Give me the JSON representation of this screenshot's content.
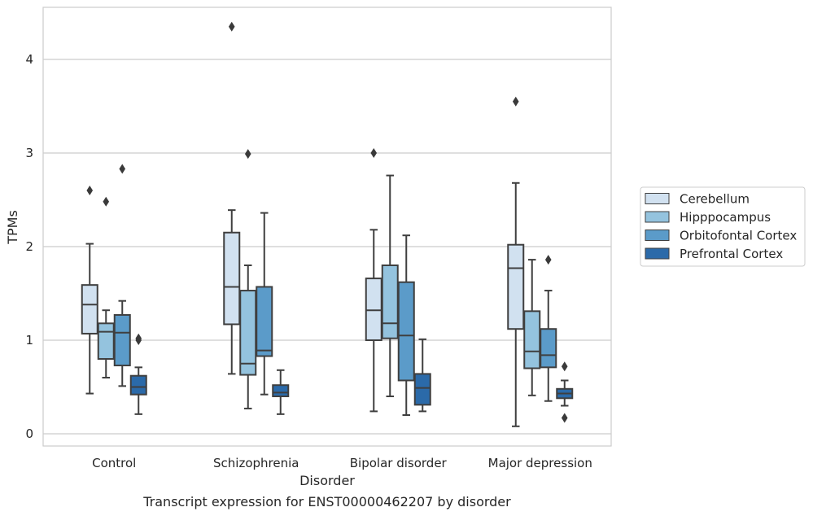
{
  "chart_data": {
    "type": "boxplot",
    "title": "",
    "caption": "Transcript expression for ENST00000462207 by disorder",
    "xlabel": "Disorder",
    "ylabel": "TPMs",
    "ylim": [
      -0.12,
      4.55
    ],
    "yticks": [
      "0",
      "1",
      "2",
      "3",
      "4"
    ],
    "categories": [
      "Control",
      "Schizophrenia",
      "Bipolar disorder",
      "Major depression"
    ],
    "grid": "horizontal",
    "legend_position": "right",
    "series": [
      {
        "name": "Cerebellum",
        "color": "#d1e1f0",
        "boxes": [
          {
            "whislo": 0.43,
            "q1": 1.07,
            "med": 1.38,
            "q3": 1.59,
            "whishi": 2.03,
            "fliers": [
              2.6
            ]
          },
          {
            "whislo": 0.64,
            "q1": 1.17,
            "med": 1.57,
            "q3": 2.15,
            "whishi": 2.39,
            "fliers": [
              4.35
            ]
          },
          {
            "whislo": 0.24,
            "q1": 1.0,
            "med": 1.32,
            "q3": 1.66,
            "whishi": 2.18,
            "fliers": [
              3.0
            ]
          },
          {
            "whislo": 0.08,
            "q1": 1.12,
            "med": 1.77,
            "q3": 2.02,
            "whishi": 2.68,
            "fliers": [
              3.55
            ]
          }
        ]
      },
      {
        "name": "Hipppocampus",
        "color": "#94c3de",
        "boxes": [
          {
            "whislo": 0.6,
            "q1": 0.8,
            "med": 1.09,
            "q3": 1.18,
            "whishi": 1.32,
            "fliers": [
              2.48
            ]
          },
          {
            "whislo": 0.27,
            "q1": 0.63,
            "med": 0.75,
            "q3": 1.53,
            "whishi": 1.8,
            "fliers": [
              2.99
            ]
          },
          {
            "whislo": 0.4,
            "q1": 1.02,
            "med": 1.18,
            "q3": 1.8,
            "whishi": 2.76,
            "fliers": []
          },
          {
            "whislo": 0.41,
            "q1": 0.7,
            "med": 0.88,
            "q3": 1.31,
            "whishi": 1.86,
            "fliers": []
          }
        ]
      },
      {
        "name": "Orbitofontal Cortex",
        "color": "#5b9bc9",
        "boxes": [
          {
            "whislo": 0.51,
            "q1": 0.73,
            "med": 1.08,
            "q3": 1.27,
            "whishi": 1.42,
            "fliers": [
              2.83
            ]
          },
          {
            "whislo": 0.42,
            "q1": 0.83,
            "med": 0.89,
            "q3": 1.57,
            "whishi": 2.36,
            "fliers": []
          },
          {
            "whislo": 0.2,
            "q1": 0.57,
            "med": 1.05,
            "q3": 1.62,
            "whishi": 2.12,
            "fliers": []
          },
          {
            "whislo": 0.35,
            "q1": 0.71,
            "med": 0.84,
            "q3": 1.12,
            "whishi": 1.53,
            "fliers": [
              1.86
            ]
          }
        ]
      },
      {
        "name": "Prefrontal Cortex",
        "color": "#2b6aa9",
        "boxes": [
          {
            "whislo": 0.21,
            "q1": 0.42,
            "med": 0.5,
            "q3": 0.62,
            "whishi": 0.71,
            "fliers": [
              1.0,
              1.02
            ]
          },
          {
            "whislo": 0.21,
            "q1": 0.4,
            "med": 0.44,
            "q3": 0.52,
            "whishi": 0.68,
            "fliers": []
          },
          {
            "whislo": 0.24,
            "q1": 0.31,
            "med": 0.49,
            "q3": 0.64,
            "whishi": 1.01,
            "fliers": []
          },
          {
            "whislo": 0.3,
            "q1": 0.38,
            "med": 0.43,
            "q3": 0.48,
            "whishi": 0.57,
            "fliers": [
              0.72,
              0.17
            ]
          }
        ]
      }
    ]
  }
}
